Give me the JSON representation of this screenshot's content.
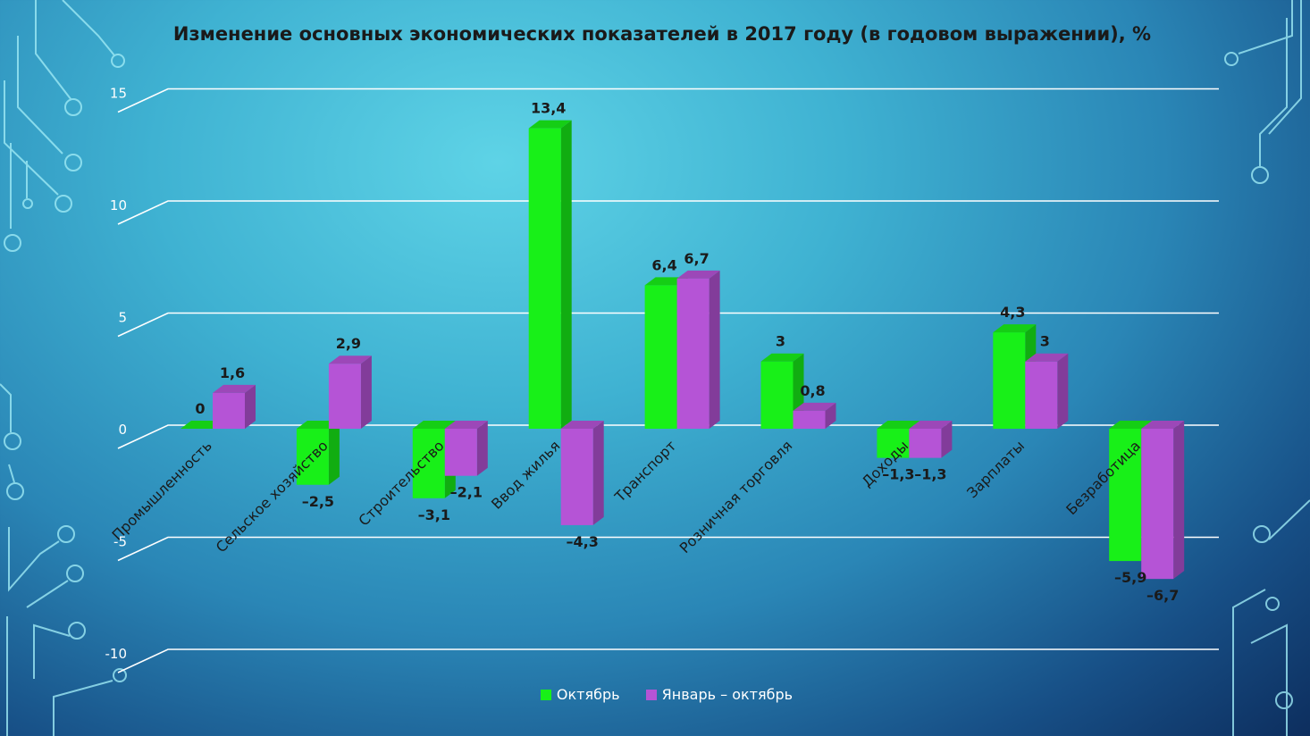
{
  "chart_data": {
    "type": "bar",
    "title": "Изменение основных экономических показателей в 2017 году (в годовом выражении), %",
    "categories": [
      "Промышленность",
      "Сельское хозяйство",
      "Строительство",
      "Ввод жилья",
      "Транспорт",
      "Розничная торговля",
      "Доходы",
      "Зарплаты",
      "Безработица"
    ],
    "series": [
      {
        "name": "Октябрь",
        "color": "#18f018",
        "values": [
          0,
          -2.5,
          -3.1,
          13.4,
          6.4,
          3,
          -1.3,
          4.3,
          -5.9
        ],
        "labels": [
          "0",
          "–2,5",
          "–3,1",
          "13,4",
          "6,4",
          "3",
          "–1,3",
          "4,3",
          "–5,9"
        ]
      },
      {
        "name": "Январь – октябрь",
        "color": "#b554d6",
        "values": [
          1.6,
          2.9,
          -2.1,
          -4.3,
          6.7,
          0.8,
          -1.3,
          3,
          -6.7
        ],
        "labels": [
          "1,6",
          "2,9",
          "–2,1",
          "–4,3",
          "6,7",
          "0,8",
          "–1,3",
          "3",
          "–6,7"
        ]
      }
    ],
    "yticks": [
      "15",
      "10",
      "5",
      "0",
      "-5",
      "-10"
    ],
    "ylim": [
      -10,
      15
    ],
    "grid": true,
    "legend_position": "bottom"
  }
}
